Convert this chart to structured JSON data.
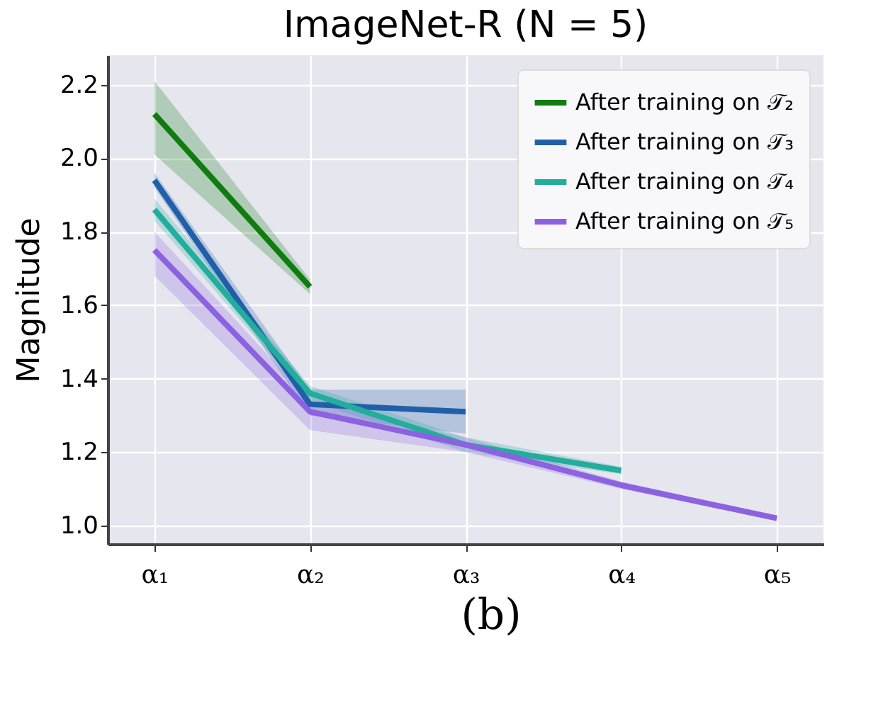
{
  "chart_data": {
    "type": "line",
    "title": "ImageNet-R (N = 5)",
    "ylabel": "Magnitude",
    "annotations": [
      "(b)"
    ],
    "categories": [
      "α₁",
      "α₂",
      "α₃",
      "α₄",
      "α₅"
    ],
    "series": [
      {
        "name": "After training on 𝒯₂",
        "color": "#107c10",
        "values": [
          2.12,
          1.65,
          null,
          null,
          null
        ],
        "lower": [
          2.01,
          1.63,
          null,
          null,
          null
        ],
        "upper": [
          2.21,
          1.67,
          null,
          null,
          null
        ]
      },
      {
        "name": "After training on 𝒯₃",
        "color": "#2160a8",
        "values": [
          1.94,
          1.33,
          1.31,
          null,
          null
        ],
        "lower": [
          1.92,
          1.3,
          1.25,
          null,
          null
        ],
        "upper": [
          1.96,
          1.37,
          1.37,
          null,
          null
        ]
      },
      {
        "name": "After training on 𝒯₄",
        "color": "#22ad9c",
        "values": [
          1.86,
          1.36,
          1.22,
          1.15,
          null
        ],
        "lower": [
          1.83,
          1.34,
          1.2,
          1.14,
          null
        ],
        "upper": [
          1.89,
          1.38,
          1.24,
          1.16,
          null
        ]
      },
      {
        "name": "After training on 𝒯₅",
        "color": "#8c62e0",
        "values": [
          1.75,
          1.31,
          1.22,
          1.11,
          1.02
        ],
        "lower": [
          1.68,
          1.26,
          1.2,
          1.1,
          1.015
        ],
        "upper": [
          1.8,
          1.34,
          1.24,
          1.12,
          1.025
        ]
      }
    ],
    "ylim": [
      0.95,
      2.28
    ],
    "yticks": [
      {
        "value": 1,
        "label": "1.0"
      },
      1.2,
      1.4,
      1.6,
      1.8,
      {
        "value": 2,
        "label": "2.0"
      },
      2.2
    ],
    "grid": true,
    "legend": "top right",
    "marker": "none",
    "line_style": "solid"
  }
}
